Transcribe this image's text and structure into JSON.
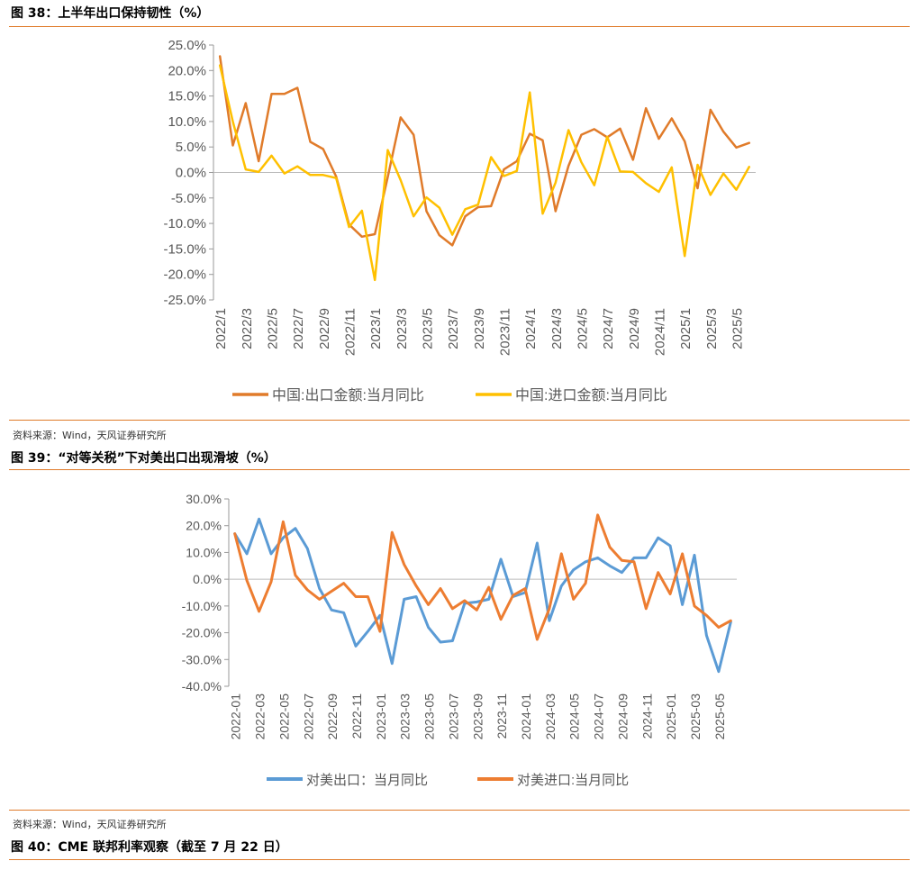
{
  "figures": [
    {
      "title": "图 38：上半年出口保持韧性（%）",
      "source": "资料来源：Wind，天风证券研究所"
    },
    {
      "title": "图 39：“对等关税”下对美出口出现滑坡（%）",
      "source": "资料来源：Wind，天风证券研究所"
    },
    {
      "title": "图 40：CME 联邦利率观察（截至 7 月 22 日）"
    }
  ],
  "colors": {
    "orange": "#e07b2a",
    "yellow": "#ffc000",
    "blue": "#5b9bd5",
    "orange2": "#ed7d31",
    "rule": "#e07b2a"
  },
  "chart_data": [
    {
      "type": "line",
      "ylim": [
        -25,
        25
      ],
      "yticks": [
        25,
        20,
        15,
        10,
        5,
        0,
        -5,
        -10,
        -15,
        -20,
        -25
      ],
      "ytick_labels": [
        "25.0%",
        "20.0%",
        "15.0%",
        "10.0%",
        "5.0%",
        "0.0%",
        "-5.0%",
        "-10.0%",
        "-15.0%",
        "-20.0%",
        "-25.0%"
      ],
      "xtick_labels": [
        "2022/1",
        "2022/3",
        "2022/5",
        "2022/7",
        "2022/9",
        "2022/11",
        "2023/1",
        "2023/3",
        "2023/5",
        "2023/7",
        "2023/9",
        "2023/11",
        "2024/1",
        "2024/3",
        "2024/5",
        "2024/7",
        "2024/9",
        "2024/11",
        "2025/1",
        "2025/3",
        "2025/5"
      ],
      "legend_position": "bottom",
      "series": [
        {
          "name": "中国:出口金额:当月同比",
          "color": "#e07b2a",
          "values": [
            22.8,
            5.3,
            13.6,
            2.2,
            15.4,
            15.4,
            16.6,
            6.0,
            4.6,
            -0.8,
            -10.2,
            -12.6,
            -12.1,
            -0.9,
            10.8,
            7.4,
            -7.6,
            -12.3,
            -14.3,
            -8.6,
            -6.8,
            -6.6,
            0.6,
            2.2,
            7.6,
            6.3,
            -7.6,
            1.3,
            7.4,
            8.5,
            6.9,
            8.6,
            2.5,
            12.6,
            6.6,
            10.6,
            6.1,
            -3.1,
            12.3,
            8.0,
            4.9,
            5.8
          ]
        },
        {
          "name": "中国:进口金额:当月同比",
          "color": "#ffc000",
          "values": [
            21.0,
            10.0,
            0.6,
            0.1,
            3.3,
            -0.2,
            1.2,
            -0.5,
            -0.5,
            -1.1,
            -10.7,
            -7.5,
            -21.1,
            4.4,
            -1.5,
            -8.6,
            -4.9,
            -6.9,
            -12.2,
            -7.2,
            -6.3,
            3.0,
            -0.7,
            0.3,
            15.7,
            -8.1,
            -2.0,
            8.3,
            2.0,
            -2.5,
            7.0,
            0.2,
            0.1,
            -2.1,
            -3.8,
            1.0,
            -16.4,
            1.5,
            -4.4,
            -0.2,
            -3.4,
            1.1
          ]
        }
      ]
    },
    {
      "type": "line",
      "ylim": [
        -40,
        30
      ],
      "yticks": [
        30,
        20,
        10,
        0,
        -10,
        -20,
        -30,
        -40
      ],
      "ytick_labels": [
        "30.0%",
        "20.0%",
        "10.0%",
        "0.0%",
        "-10.0%",
        "-20.0%",
        "-30.0%",
        "-40.0%"
      ],
      "xtick_labels": [
        "2022-01",
        "2022-03",
        "2022-05",
        "2022-07",
        "2022-09",
        "2022-11",
        "2023-01",
        "2023-03",
        "2023-05",
        "2023-07",
        "2023-09",
        "2023-11",
        "2024-01",
        "2024-03",
        "2024-05",
        "2024-07",
        "2024-09",
        "2024-11",
        "2025-01",
        "2025-03",
        "2025-05"
      ],
      "legend_position": "bottom",
      "series": [
        {
          "name": "对美出口：当月同比",
          "color": "#5b9bd5",
          "values": [
            17.0,
            9.5,
            22.5,
            9.5,
            15.5,
            19.0,
            11.5,
            -3.5,
            -11.5,
            -12.5,
            -25.0,
            -19.5,
            -13.5,
            -31.5,
            -7.5,
            -6.5,
            -18.0,
            -23.5,
            -23.0,
            -9.0,
            -8.5,
            -7.5,
            7.5,
            -6.5,
            -5.0,
            13.5,
            -15.5,
            -2.5,
            3.5,
            6.5,
            8.0,
            5.0,
            2.5,
            8.0,
            8.0,
            15.5,
            12.5,
            -9.5,
            9.0,
            -21.0,
            -34.5,
            -16.0
          ]
        },
        {
          "name": "对美进口:当月同比",
          "color": "#ed7d31",
          "values": [
            17.0,
            -0.5,
            -12.0,
            -1.0,
            21.5,
            1.5,
            -4.0,
            -7.5,
            -4.5,
            -1.5,
            -6.5,
            -6.5,
            -19.5,
            17.5,
            5.5,
            -2.5,
            -9.5,
            -3.5,
            -11.0,
            -8.0,
            -11.5,
            -3.0,
            -15.0,
            -6.0,
            -3.5,
            -22.5,
            -11.0,
            9.5,
            -7.5,
            -1.5,
            24.0,
            12.0,
            7.0,
            6.5,
            -11.0,
            2.5,
            -5.5,
            9.5,
            -10.0,
            -13.5,
            -18.0,
            -15.5
          ]
        }
      ]
    }
  ]
}
